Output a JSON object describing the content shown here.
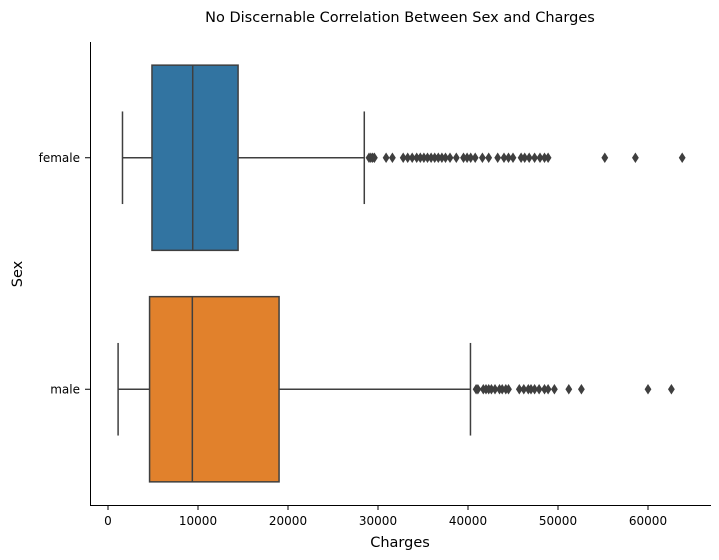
{
  "chart_data": {
    "type": "boxplot",
    "orientation": "horizontal",
    "title": "No Discernable Correlation Between Sex and Charges",
    "xlabel": "Charges",
    "ylabel": "Sex",
    "xlim": [
      -2000,
      67000
    ],
    "xticks": [
      0,
      10000,
      20000,
      30000,
      40000,
      50000,
      60000
    ],
    "grid": false,
    "categories": [
      "female",
      "male"
    ],
    "series": [
      {
        "category": "female",
        "color": "#3274a1",
        "whisker_low": 1610,
        "q1": 4885,
        "median": 9413,
        "q3": 14454,
        "whisker_high": 28476,
        "outliers": [
          29000,
          29200,
          29400,
          29600,
          30900,
          31600,
          32800,
          33300,
          33800,
          34300,
          34700,
          35100,
          35500,
          35900,
          36300,
          36700,
          37100,
          37500,
          38000,
          38700,
          39500,
          39900,
          40300,
          40800,
          41600,
          42300,
          43300,
          44000,
          44500,
          45000,
          45900,
          46300,
          46800,
          47400,
          48000,
          48500,
          48900,
          55200,
          58600,
          63800
        ]
      },
      {
        "category": "male",
        "color": "#e1812c",
        "whisker_low": 1122,
        "q1": 4619,
        "median": 9370,
        "q3": 19007,
        "whisker_high": 40274,
        "outliers": [
          40900,
          41100,
          41700,
          42000,
          42300,
          42600,
          43000,
          43500,
          43800,
          44200,
          44500,
          45700,
          46200,
          46700,
          47000,
          47400,
          47900,
          48500,
          48900,
          49600,
          51200,
          52600,
          60000,
          62600
        ]
      }
    ]
  }
}
